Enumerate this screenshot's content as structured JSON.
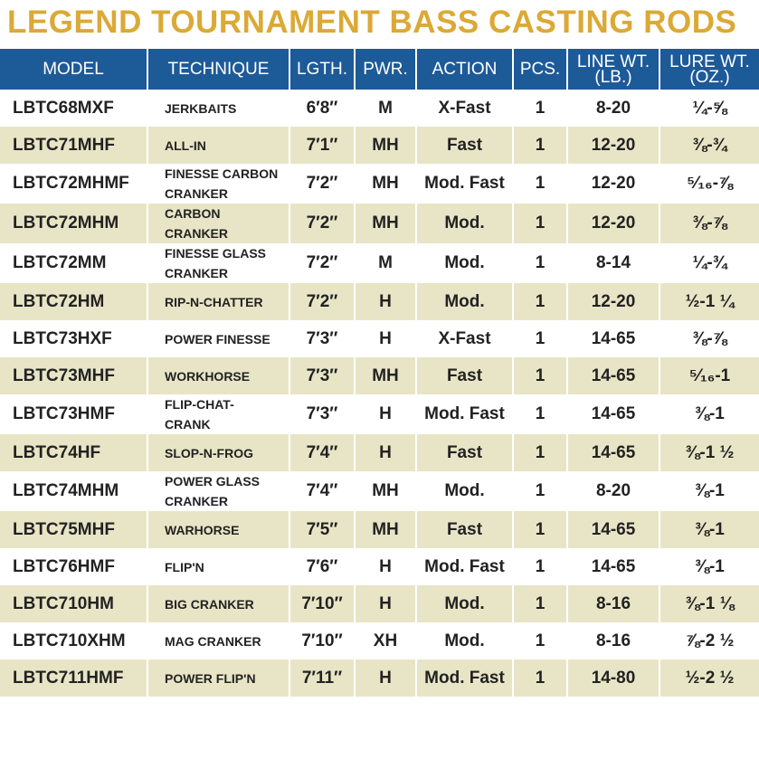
{
  "header": {
    "title": "LEGEND TOURNAMENT BASS CASTING RODS"
  },
  "table": {
    "columns": [
      "MODEL",
      "TECHNIQUE",
      "LGTH.",
      "PWR.",
      "ACTION",
      "PCS.",
      "LINE WT.\n(LB.)",
      "LURE WT.\n(OZ.)"
    ],
    "rows": [
      [
        "LBTC68MXF",
        "JERKBAITS",
        "6′8″",
        "M",
        "X-Fast",
        "1",
        "8-20",
        "¼-⅝"
      ],
      [
        "LBTC71MHF",
        "ALL-IN",
        "7′1″",
        "MH",
        "Fast",
        "1",
        "12-20",
        "⅜-¾"
      ],
      [
        "LBTC72MHMF",
        "FINESSE CARBON\nCRANKER",
        "7′2″",
        "MH",
        "Mod. Fast",
        "1",
        "12-20",
        "⁵⁄₁₆-⅞"
      ],
      [
        "LBTC72MHM",
        "CARBON\nCRANKER",
        "7′2″",
        "MH",
        "Mod.",
        "1",
        "12-20",
        "⅜-⅞"
      ],
      [
        "LBTC72MM",
        "FINESSE GLASS\nCRANKER",
        "7′2″",
        "M",
        "Mod.",
        "1",
        "8-14",
        "¼-¾"
      ],
      [
        "LBTC72HM",
        "RIP-N-CHATTER",
        "7′2″",
        "H",
        "Mod.",
        "1",
        "12-20",
        "½-1 ¼"
      ],
      [
        "LBTC73HXF",
        "POWER FINESSE",
        "7′3″",
        "H",
        "X-Fast",
        "1",
        "14-65",
        "⅜-⅞"
      ],
      [
        "LBTC73MHF",
        "WORKHORSE",
        "7′3″",
        "MH",
        "Fast",
        "1",
        "14-65",
        "⁵⁄₁₆-1"
      ],
      [
        "LBTC73HMF",
        "FLIP-CHAT-\nCRANK",
        "7′3″",
        "H",
        "Mod. Fast",
        "1",
        "14-65",
        "⅜-1"
      ],
      [
        "LBTC74HF",
        "SLOP-N-FROG",
        "7′4″",
        "H",
        "Fast",
        "1",
        "14-65",
        "⅜-1 ½"
      ],
      [
        "LBTC74MHM",
        "POWER GLASS\nCRANKER",
        "7′4″",
        "MH",
        "Mod.",
        "1",
        "8-20",
        "⅜-1"
      ],
      [
        "LBTC75MHF",
        "WARHORSE",
        "7′5″",
        "MH",
        "Fast",
        "1",
        "14-65",
        "⅜-1"
      ],
      [
        "LBTC76HMF",
        "FLIP'N",
        "7′6″",
        "H",
        "Mod. Fast",
        "1",
        "14-65",
        "⅜-1"
      ],
      [
        "LBTC710HM",
        "BIG CRANKER",
        "7′10″",
        "H",
        "Mod.",
        "1",
        "8-16",
        "⅜-1 ⅛"
      ],
      [
        "LBTC710XHM",
        "MAG CRANKER",
        "7′10″",
        "XH",
        "Mod.",
        "1",
        "8-16",
        "⅞-2 ½"
      ],
      [
        "LBTC711HMF",
        "POWER FLIP'N",
        "7′11″",
        "H",
        "Mod. Fast",
        "1",
        "14-80",
        "½-2 ½"
      ]
    ]
  }
}
